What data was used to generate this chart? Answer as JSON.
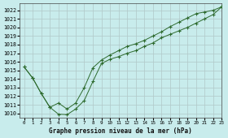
{
  "title": "Graphe pression niveau de la mer (hPa)",
  "background_color": "#c8ecec",
  "grid_color": "#b0c8c8",
  "line_color": "#2d6a2d",
  "marker_color": "#2d6a2d",
  "xlim": [
    -0.5,
    23
  ],
  "ylim": [
    1009.5,
    1022.8
  ],
  "xticks": [
    0,
    1,
    2,
    3,
    4,
    5,
    6,
    7,
    8,
    9,
    10,
    11,
    12,
    13,
    14,
    15,
    16,
    17,
    18,
    19,
    20,
    21,
    22,
    23
  ],
  "yticks": [
    1010,
    1011,
    1012,
    1013,
    1014,
    1015,
    1016,
    1017,
    1018,
    1019,
    1020,
    1021,
    1022
  ],
  "line1_x": [
    0,
    1,
    2,
    3,
    4,
    5,
    6,
    7,
    8,
    9,
    10,
    11,
    12,
    13,
    14,
    15,
    16,
    17,
    18,
    19,
    20,
    21,
    22,
    23
  ],
  "line1_y": [
    1015.4,
    1014.1,
    1012.3,
    1010.7,
    1009.9,
    1009.85,
    1010.5,
    1011.5,
    1013.7,
    1015.8,
    1016.3,
    1016.6,
    1017.0,
    1017.3,
    1017.8,
    1018.2,
    1018.8,
    1019.2,
    1019.6,
    1020.0,
    1020.5,
    1021.0,
    1021.5,
    1022.4
  ],
  "line2_x": [
    0,
    1,
    2,
    3,
    4,
    5,
    6,
    7,
    8,
    9,
    10,
    11,
    12,
    13,
    14,
    15,
    16,
    17,
    18,
    19,
    20,
    21,
    22,
    23
  ],
  "line2_y": [
    1015.4,
    1014.1,
    1012.3,
    1010.7,
    1011.2,
    1010.5,
    1011.2,
    1013.0,
    1015.3,
    1016.2,
    1016.8,
    1017.3,
    1017.8,
    1018.1,
    1018.5,
    1019.0,
    1019.5,
    1020.1,
    1020.6,
    1021.1,
    1021.6,
    1021.8,
    1022.0,
    1022.4
  ]
}
